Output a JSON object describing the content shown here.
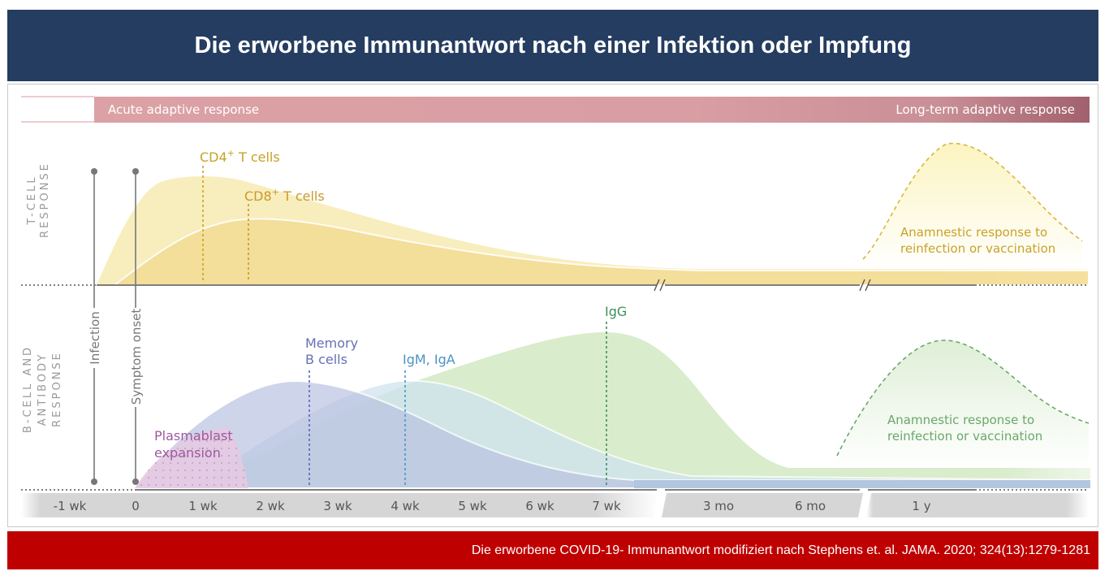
{
  "title": "Die erworbene Immunantwort nach einer Infektion oder Impfung",
  "footer": "Die erworbene COVID-19- Immunantwort modifiziert nach Stephens et. al. JAMA. 2020; 324(13):1279-1281",
  "phase_bar": {
    "left": "Acute adaptive response",
    "right": "Long-term adaptive response"
  },
  "sections": {
    "t_cell": [
      "T-CELL",
      "RESPONSE"
    ],
    "b_cell": [
      "B-CELL AND",
      "ANTIBODY",
      "RESPONSE"
    ]
  },
  "markers": {
    "infection": "Infection",
    "symptom": "Symptom onset"
  },
  "t_labels": {
    "cd4": "CD4",
    "cd8": "CD8",
    "plus": "+",
    "t_cells": " T cells",
    "anamnestic": [
      "Anamnestic response to",
      "reinfection or vaccination"
    ]
  },
  "b_labels": {
    "plasmablast": [
      "Plasmablast",
      "expansion"
    ],
    "memory": [
      "Memory",
      "B cells"
    ],
    "igm": "IgM, IgA",
    "igg": "IgG",
    "anamnestic": [
      "Anamnestic response to",
      "reinfection or vaccination"
    ]
  },
  "axis_ticks": [
    "-1 wk",
    "0",
    "1 wk",
    "2 wk",
    "3 wk",
    "4 wk",
    "5 wk",
    "6 wk",
    "7 wk",
    "3 mo",
    "6 mo",
    "1 y"
  ],
  "colors": {
    "title_bg": "#243d60",
    "footer_bg": "#bf0000",
    "cd4": "#c9a227",
    "cd8": "#c99a2a",
    "t_fill": "#f8eeb0",
    "plasmablast": "#9b5a9e",
    "memory": "#6670b7",
    "igm": "#4d93c4",
    "igg": "#3d8f5a",
    "anamnestic_t": "#c9a227",
    "anamnestic_b": "#6aa86a"
  }
}
